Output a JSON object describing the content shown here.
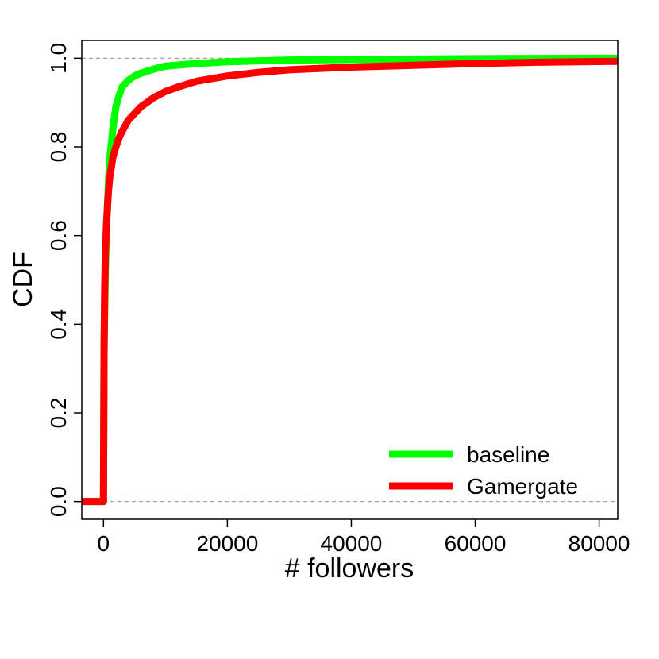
{
  "chart_data": {
    "type": "line",
    "title": "",
    "xlabel": "# followers",
    "ylabel": "CDF",
    "xlim": [
      -3500,
      83000
    ],
    "ylim": [
      -0.04,
      1.04
    ],
    "x_ticks": [
      0,
      20000,
      40000,
      60000,
      80000
    ],
    "x_tick_labels": [
      "0",
      "20000",
      "40000",
      "60000",
      "80000"
    ],
    "y_ticks": [
      0,
      0.2,
      0.4,
      0.6,
      0.8,
      1.0
    ],
    "y_tick_labels": [
      "0.0",
      "0.2",
      "0.4",
      "0.6",
      "0.8",
      "1.0"
    ],
    "reference_lines": [
      0,
      1
    ],
    "grid": false,
    "legend_position": "bottom-right",
    "colors": {
      "baseline": "#00ff00",
      "Gamergate": "#ff0000",
      "reference": "#999999"
    },
    "series": [
      {
        "name": "baseline",
        "x": [
          -3500,
          0,
          100,
          300,
          500,
          800,
          1000,
          1500,
          2000,
          2500,
          3000,
          4000,
          5000,
          6000,
          8000,
          10000,
          15000,
          20000,
          30000,
          40000,
          60000,
          83000
        ],
        "y": [
          0,
          0,
          0.35,
          0.52,
          0.62,
          0.72,
          0.77,
          0.84,
          0.89,
          0.915,
          0.935,
          0.95,
          0.96,
          0.966,
          0.975,
          0.982,
          0.988,
          0.992,
          0.996,
          0.997,
          0.999,
          1.0
        ]
      },
      {
        "name": "Gamergate",
        "x": [
          -3500,
          0,
          100,
          200,
          300,
          500,
          800,
          1000,
          1500,
          2000,
          2500,
          3000,
          4000,
          5000,
          6000,
          8000,
          10000,
          12000,
          15000,
          20000,
          25000,
          30000,
          40000,
          50000,
          60000,
          70000,
          83000
        ],
        "y": [
          0,
          0,
          0.35,
          0.48,
          0.56,
          0.63,
          0.7,
          0.73,
          0.775,
          0.8,
          0.82,
          0.835,
          0.86,
          0.875,
          0.89,
          0.91,
          0.925,
          0.935,
          0.948,
          0.96,
          0.968,
          0.974,
          0.98,
          0.984,
          0.988,
          0.991,
          0.993
        ]
      }
    ]
  }
}
